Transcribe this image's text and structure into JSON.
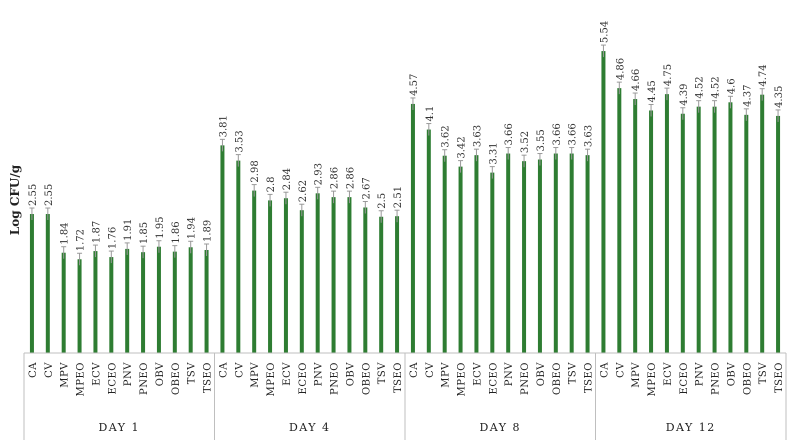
{
  "chart_data": {
    "type": "bar",
    "ylabel": "Log CFU/g",
    "xlabel": "",
    "ylim": [
      0,
      6
    ],
    "grid": false,
    "bar_color": "#2e7d32",
    "error_bar_color": "#999999",
    "categories": [
      "CA",
      "CV",
      "MPV",
      "MPEO",
      "ECV",
      "ECEO",
      "PNV",
      "PNEO",
      "OBV",
      "OBEO",
      "TSV",
      "TSEO"
    ],
    "groups": [
      {
        "label": "DAY 1",
        "values": [
          2.55,
          2.55,
          1.84,
          1.72,
          1.87,
          1.76,
          1.91,
          1.85,
          1.95,
          1.86,
          1.94,
          1.89
        ]
      },
      {
        "label": "DAY 4",
        "values": [
          3.81,
          3.53,
          2.98,
          2.8,
          2.84,
          2.62,
          2.93,
          2.86,
          2.86,
          2.67,
          2.5,
          2.51
        ]
      },
      {
        "label": "DAY 8",
        "values": [
          4.57,
          4.1,
          3.62,
          3.42,
          3.63,
          3.31,
          3.66,
          3.52,
          3.55,
          3.66,
          3.66,
          3.63
        ]
      },
      {
        "label": "DAY 12",
        "values": [
          5.54,
          4.86,
          4.66,
          4.45,
          4.75,
          4.39,
          4.52,
          4.52,
          4.6,
          4.37,
          4.74,
          4.35
        ]
      }
    ]
  }
}
